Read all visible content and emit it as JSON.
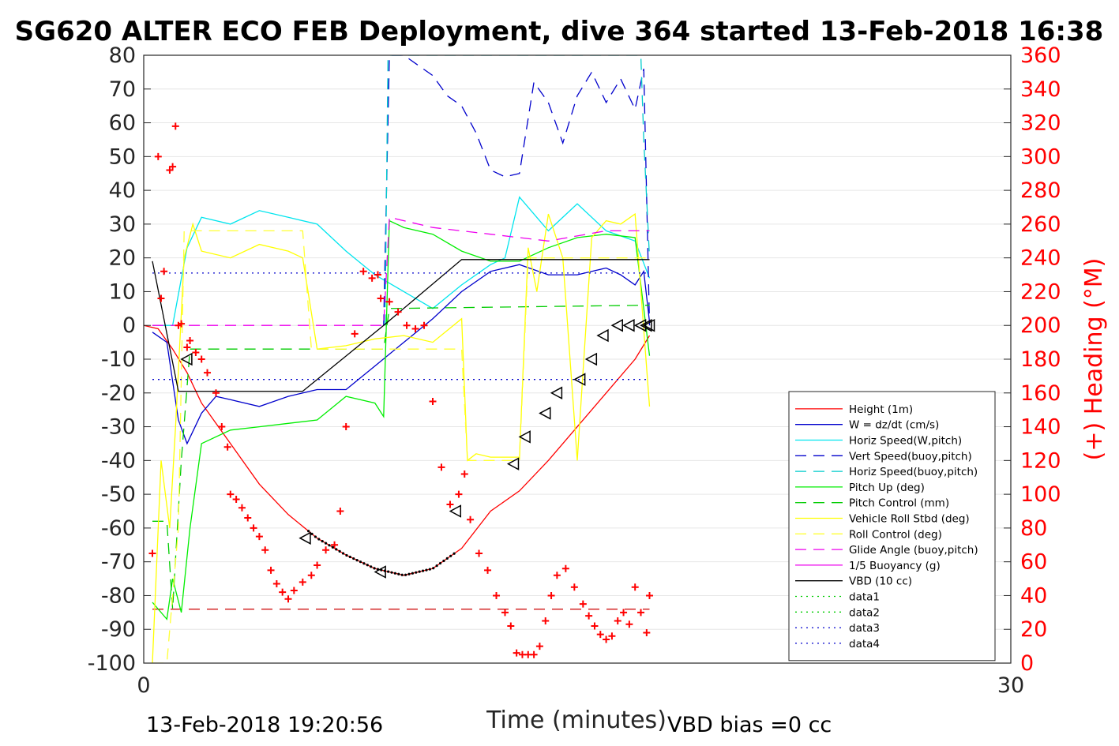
{
  "chart_data": {
    "type": "line",
    "title": "SG620 ALTER ECO FEB Deployment, dive 364 started 13-Feb-2018 16:38",
    "xlabel": "Time (minutes)",
    "ylabel": "",
    "ylabel_right": "(+) Heading (°M)",
    "xlim": [
      0,
      30
    ],
    "ylim": [
      -100,
      80
    ],
    "ylim_right": [
      0,
      360
    ],
    "x_ticks": [
      "0",
      "30"
    ],
    "y_ticks": [
      "80",
      "70",
      "60",
      "50",
      "40",
      "30",
      "20",
      "10",
      "0",
      "-10",
      "-20",
      "-30",
      "-40",
      "-50",
      "-60",
      "-70",
      "-80",
      "-90",
      "-100"
    ],
    "y_right_ticks": [
      "360",
      "340",
      "320",
      "300",
      "280",
      "260",
      "240",
      "220",
      "200",
      "180",
      "160",
      "140",
      "120",
      "100",
      "80",
      "60",
      "40",
      "20",
      "0"
    ],
    "grid": true,
    "legend_position": "lower-right",
    "footer_left": "13-Feb-2018 19:20:56",
    "footer_right": "VBD bias =0 cc",
    "series": [
      {
        "name": "Height (1m)",
        "color": "#ff0000",
        "style": "solid",
        "x": [
          0,
          0.5,
          1,
          1.5,
          2,
          2.5,
          3,
          4,
          5,
          6,
          7,
          8,
          9,
          10,
          11,
          12,
          13,
          14,
          15,
          16,
          17,
          17.5
        ],
        "y": [
          0,
          -1,
          -7,
          -14,
          -23,
          -29,
          -35,
          -47,
          -56,
          -63,
          -68,
          -72,
          -74,
          -72,
          -66,
          -55,
          -49,
          -40,
          -30,
          -20,
          -10,
          -3
        ]
      },
      {
        "name": "W = dz/dt (cm/s)",
        "color": "#0000cc",
        "style": "solid",
        "x": [
          0.3,
          0.8,
          1.2,
          1.5,
          2,
          2.5,
          3,
          4,
          5,
          6,
          7,
          8,
          9,
          10,
          11,
          12,
          13,
          14,
          15,
          16,
          16.5,
          17,
          17.3,
          17.5
        ],
        "y": [
          -2,
          -5,
          -28,
          -35,
          -26,
          -21,
          -22,
          -24,
          -21,
          -19,
          -19,
          -12,
          -5,
          2,
          10,
          16,
          18,
          15,
          15,
          17,
          15,
          12,
          16,
          1
        ]
      },
      {
        "name": "Horiz Speed(W,pitch)",
        "color": "#00e5ee",
        "style": "solid",
        "x": [
          0.3,
          0.8,
          1,
          1.5,
          2,
          3,
          4,
          5,
          6,
          7,
          8,
          9,
          10,
          11,
          12,
          12.5,
          13,
          14,
          15,
          16,
          17,
          17.5
        ],
        "y": [
          0,
          0,
          0,
          23,
          32,
          30,
          34,
          32,
          30,
          22,
          15,
          10,
          5,
          12,
          18,
          20,
          38,
          28,
          36,
          28,
          25,
          14
        ]
      },
      {
        "name": "Vert Speed(buoy,pitch)",
        "color": "#0000cc",
        "style": "dashed",
        "x": [
          8.3,
          8.5,
          9,
          10,
          10.5,
          11,
          11.5,
          12,
          12.5,
          13,
          13.5,
          14,
          14.5,
          15,
          15.5,
          16,
          16.5,
          17,
          17.3,
          17.5
        ],
        "y": [
          0,
          80,
          80,
          74,
          68,
          65,
          57,
          46,
          44,
          45,
          72,
          66,
          54,
          68,
          75,
          66,
          73,
          64,
          76,
          0
        ]
      },
      {
        "name": "Horiz Speed(buoy,pitch)",
        "color": "#00cccc",
        "style": "dashed",
        "x": [
          8.35,
          8.45,
          17.2,
          17.3,
          17.5
        ],
        "y": [
          0,
          80,
          80,
          55,
          20
        ]
      },
      {
        "name": "Pitch Up (deg)",
        "color": "#00ee00",
        "style": "solid",
        "x": [
          0.3,
          0.8,
          1,
          1.3,
          1.6,
          2,
          3,
          4,
          5,
          6,
          7,
          8,
          8.3,
          8.5,
          9,
          10,
          11,
          12,
          13,
          14,
          15,
          16,
          17,
          17.5
        ],
        "y": [
          -82,
          -87,
          -75,
          -85,
          -60,
          -35,
          -31,
          -30,
          -29,
          -28,
          -21,
          -23,
          -27,
          31,
          29,
          27,
          22,
          19,
          19,
          23,
          26,
          27,
          26,
          -9
        ]
      },
      {
        "name": "Pitch Control (mm)",
        "color": "#00cc00",
        "style": "dashed",
        "x": [
          0.3,
          0.8,
          1,
          1.3,
          1.6,
          8.3,
          8.5,
          17.5
        ],
        "y": [
          -58,
          -58,
          -84,
          -40,
          -7,
          -7,
          5,
          6
        ]
      },
      {
        "name": "Vehicle Roll Stbd (deg)",
        "color": "#ffff00",
        "style": "solid",
        "x": [
          0.3,
          0.6,
          0.9,
          1.1,
          1.4,
          1.7,
          2,
          3,
          4,
          5,
          5.5,
          6,
          7,
          8,
          9,
          10,
          11,
          11.2,
          11.5,
          12,
          13,
          13.3,
          13.6,
          14,
          14.5,
          15,
          15.5,
          16,
          16.5,
          17,
          17.5
        ],
        "y": [
          -100,
          -40,
          -60,
          -30,
          20,
          30,
          22,
          20,
          24,
          22,
          20,
          -7,
          -6,
          -4,
          -3,
          -5,
          2,
          -40,
          -38,
          -39,
          -39,
          23,
          10,
          33,
          20,
          -40,
          26,
          31,
          30,
          33,
          -24
        ]
      },
      {
        "name": "Roll Control (deg)",
        "color": "#ffff33",
        "style": "dashed",
        "x": [
          0.3,
          0.8,
          1.2,
          1.4,
          5.5,
          5.8,
          11,
          11.2,
          13,
          13.3,
          17.5
        ],
        "y": [
          -100,
          -100,
          -60,
          28,
          28,
          -7,
          -7,
          -40,
          -40,
          20,
          20
        ]
      },
      {
        "name": "Glide Angle (buoy,pitch)",
        "color": "#ee00ee",
        "style": "dashed",
        "x": [
          0.3,
          8.3,
          8.5,
          10,
          12,
          14,
          16,
          17.5
        ],
        "y": [
          0,
          0,
          32,
          29,
          27,
          25,
          28,
          28
        ]
      },
      {
        "name": "1/5 Buoyancy (g)",
        "color": "#ee00ee",
        "style": "solid",
        "x": [],
        "y": []
      },
      {
        "name": "VBD (10 cc)",
        "color": "#000000",
        "style": "solid",
        "x": [
          0.3,
          1.2,
          5.5,
          8.3,
          11,
          17.5
        ],
        "y": [
          19,
          -19.5,
          -19.5,
          0,
          19.5,
          19.5
        ]
      },
      {
        "name": "data1",
        "color": "#00cc00",
        "style": "dotted",
        "x": [],
        "y": []
      },
      {
        "name": "data2",
        "color": "#00cc00",
        "style": "dotted",
        "x": [],
        "y": []
      },
      {
        "name": "data3",
        "color": "#0000cc",
        "style": "dotted",
        "x": [
          0.3,
          17.5
        ],
        "y": [
          15.5,
          15.5
        ]
      },
      {
        "name": "data4",
        "color": "#0000cc",
        "style": "dotted",
        "x": [
          0.3,
          17.5
        ],
        "y": [
          -16,
          -16
        ]
      }
    ],
    "reference_lines": [
      {
        "color": "#cc0000",
        "style": "dashed",
        "x": [
          0.3,
          17.5
        ],
        "y": [
          -84,
          -84
        ]
      }
    ],
    "markers": {
      "triangles": {
        "x": [
          1.5,
          5.6,
          8.2,
          10.8,
          12.8,
          13.2,
          13.9,
          14.3,
          15.1,
          15.5,
          15.9,
          16.4,
          16.8,
          17.2,
          17.4,
          17.5
        ],
        "y": [
          -10,
          -63,
          -73,
          -55,
          -41,
          -33,
          -26,
          -20,
          -16,
          -10,
          -3,
          0,
          0,
          0,
          0,
          0
        ]
      },
      "heading": {
        "x": [
          0.3,
          0.5,
          0.6,
          0.7,
          0.9,
          1.0,
          1.1,
          1.2,
          1.3,
          1.5,
          1.6,
          1.8,
          2,
          2.2,
          2.5,
          2.7,
          2.9,
          3.0,
          3.2,
          3.4,
          3.6,
          3.8,
          4.0,
          4.2,
          4.4,
          4.6,
          4.8,
          5.0,
          5.2,
          5.5,
          5.8,
          6.0,
          6.3,
          6.6,
          6.8,
          7.0,
          7.3,
          7.6,
          7.9,
          8.1,
          8.2,
          8.5,
          8.8,
          9.1,
          9.4,
          9.7,
          10.0,
          10.3,
          10.6,
          10.9,
          11.1,
          11.3,
          11.6,
          11.9,
          12.2,
          12.5,
          12.7,
          12.9,
          13.1,
          13.3,
          13.5,
          13.7,
          13.9,
          14.1,
          14.3,
          14.6,
          14.9,
          15.2,
          15.4,
          15.6,
          15.8,
          16.0,
          16.2,
          16.4,
          16.6,
          16.8,
          17.0,
          17.2,
          17.4,
          17.5
        ],
        "y": [
          65,
          300,
          216,
          232,
          292,
          294,
          318,
          200,
          201,
          187,
          191,
          184,
          180,
          172,
          160,
          140,
          128,
          100,
          97,
          92,
          86,
          80,
          75,
          67,
          55,
          47,
          42,
          38,
          43,
          48,
          52,
          58,
          67,
          70,
          90,
          140,
          195,
          232,
          228,
          230,
          216,
          214,
          208,
          200,
          198,
          200,
          155,
          116,
          94,
          100,
          112,
          85,
          65,
          55,
          40,
          30,
          22,
          6,
          5,
          5,
          5,
          10,
          25,
          40,
          52,
          56,
          45,
          35,
          28,
          22,
          17,
          14,
          16,
          25,
          30,
          23,
          45,
          30,
          18,
          40
        ]
      }
    }
  }
}
